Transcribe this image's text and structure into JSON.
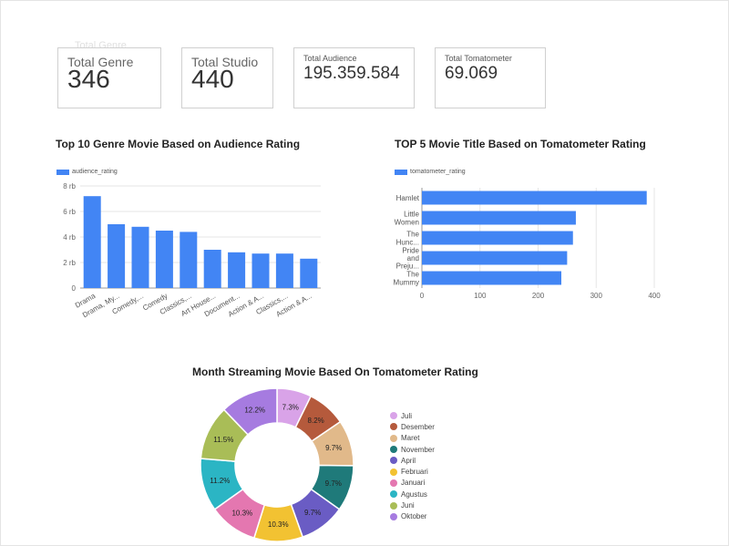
{
  "ghost_label": "Total Genre",
  "kpis": [
    {
      "label": "Total Genre",
      "value": "346"
    },
    {
      "label": "Total Studio",
      "value": "440"
    },
    {
      "label": "Total Audience",
      "value": "195.359.584"
    },
    {
      "label": "Total Tomatometer",
      "value": "69.069"
    }
  ],
  "colors": {
    "bar": "#4285f4",
    "grid": "#e6e6e6",
    "axis": "#999999"
  },
  "chart_data": [
    {
      "type": "bar",
      "orientation": "vertical",
      "title": "Top 10 Genre Movie Based on Audience Rating",
      "series": [
        {
          "name": "audience_rating",
          "values": [
            7.2,
            5.0,
            4.8,
            4.5,
            4.4,
            3.0,
            2.8,
            2.7,
            2.7,
            2.3
          ]
        }
      ],
      "categories": [
        "Drama",
        "Drama, My...",
        "Comedy,...",
        "Comedy",
        "Classics,...",
        "Art House...",
        "Document...",
        "Action & A...",
        "Classics,...",
        "Action & A..."
      ],
      "yticks": [
        "0",
        "2 rb",
        "4 rb",
        "6 rb",
        "8 rb"
      ],
      "ylim": [
        0,
        8
      ],
      "grid": true,
      "legend": "top-left"
    },
    {
      "type": "bar",
      "orientation": "horizontal",
      "title": "TOP 5 Movie Title Based on Tomatometer Rating",
      "series": [
        {
          "name": "tomatometer_rating",
          "values": [
            387,
            265,
            260,
            250,
            240
          ]
        }
      ],
      "categories": [
        [
          "Hamlet"
        ],
        [
          "Little",
          "Women"
        ],
        [
          "The",
          "Hunc..."
        ],
        [
          "Pride",
          "and",
          "Preju..."
        ],
        [
          "The",
          "Mummy"
        ]
      ],
      "xticks": [
        "0",
        "100",
        "200",
        "300",
        "400"
      ],
      "xlim": [
        0,
        400
      ],
      "grid": true,
      "legend": "top-left"
    },
    {
      "type": "pie",
      "variant": "donut",
      "title": "Month Streaming Movie Based On Tomatometer Rating",
      "slices": [
        {
          "label": "Juli",
          "value": 7.3,
          "display": "7.3%",
          "color": "#d9a3e8"
        },
        {
          "label": "Desember",
          "value": 8.2,
          "display": "8.2%",
          "color": "#b55a3c"
        },
        {
          "label": "Maret",
          "value": 9.7,
          "display": "9.7%",
          "color": "#e1b98a"
        },
        {
          "label": "November",
          "value": 9.7,
          "display": "9.7%",
          "color": "#1f7a7a"
        },
        {
          "label": "April",
          "value": 9.7,
          "display": "9.7%",
          "color": "#6a5cc4"
        },
        {
          "label": "Februari",
          "value": 10.3,
          "display": "10.3%",
          "color": "#f2c232"
        },
        {
          "label": "Januari",
          "value": 10.3,
          "display": "10.3%",
          "color": "#e477b0"
        },
        {
          "label": "Agustus",
          "value": 11.2,
          "display": "11.2%",
          "color": "#2bb5c4"
        },
        {
          "label": "Juni",
          "value": 11.5,
          "display": "11.5%",
          "color": "#a9bd57"
        },
        {
          "label": "Oktober",
          "value": 12.2,
          "display": "12.2%",
          "color": "#a67be0"
        }
      ],
      "legend": "right"
    }
  ]
}
